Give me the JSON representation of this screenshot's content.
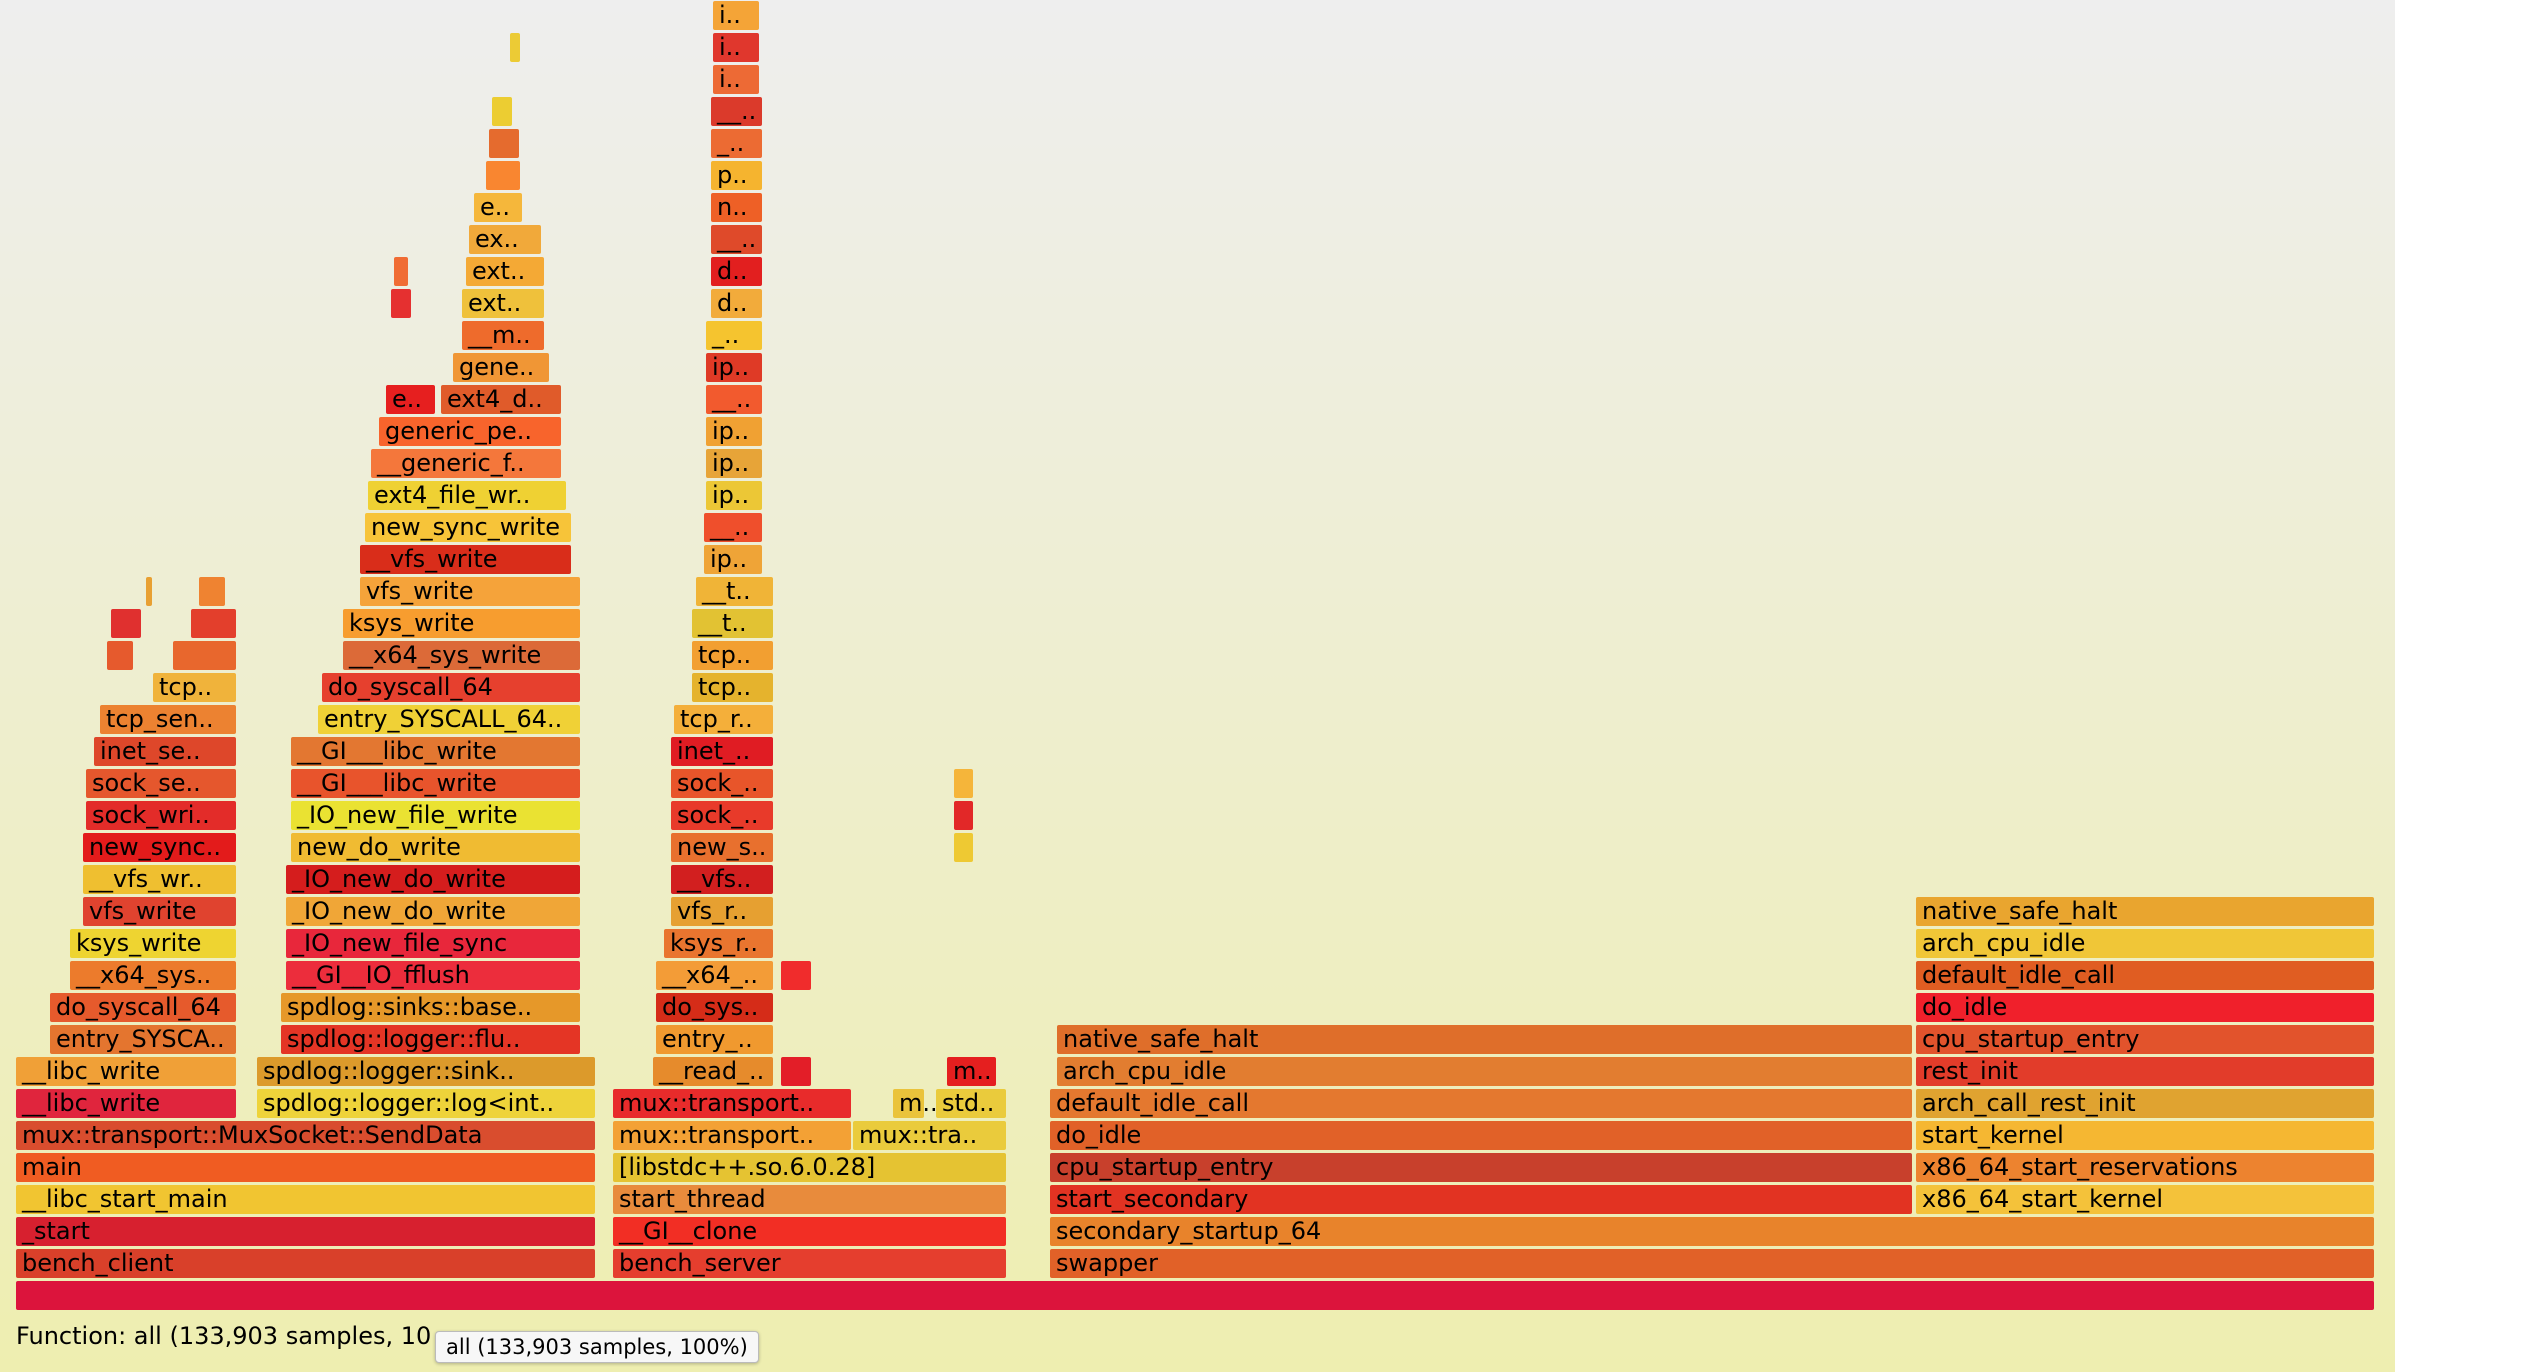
{
  "chart_data": {
    "type": "flamegraph",
    "total_samples": 133903,
    "details_prefix": "Function: ",
    "details": "Function: all (133,903 samples, 10",
    "tooltip": "all (133,903 samples, 100%)",
    "frames": [
      {
        "label": "",
        "x": 0,
        "w": 2360,
        "level": 0,
        "color": "#dc143c"
      },
      {
        "label": "bench_client",
        "x": 0,
        "w": 581,
        "level": 1,
        "color": "#d9402a"
      },
      {
        "label": "_start",
        "x": 0,
        "w": 581,
        "level": 2,
        "color": "#d7202f"
      },
      {
        "label": "__libc_start_main",
        "x": 0,
        "w": 581,
        "level": 3,
        "color": "#f1c531"
      },
      {
        "label": "main",
        "x": 0,
        "w": 581,
        "level": 4,
        "color": "#f05c22"
      },
      {
        "label": "mux::transport::MuxSocket::SendData",
        "x": 0,
        "w": 581,
        "level": 5,
        "color": "#d94d2e"
      },
      {
        "label": "__libc_write",
        "x": 0,
        "w": 222,
        "level": 6,
        "color": "#e0253d"
      },
      {
        "label": "__libc_write",
        "x": 0,
        "w": 222,
        "level": 7,
        "color": "#f0a037"
      },
      {
        "label": "entry_SYSCA..",
        "x": 34,
        "w": 188,
        "level": 8,
        "color": "#e4752f"
      },
      {
        "label": "do_syscall_64",
        "x": 34,
        "w": 188,
        "level": 9,
        "color": "#e65a2c"
      },
      {
        "label": "__x64_sys..",
        "x": 54,
        "w": 168,
        "level": 10,
        "color": "#ec7b2c"
      },
      {
        "label": "ksys_write",
        "x": 54,
        "w": 168,
        "level": 11,
        "color": "#eed431"
      },
      {
        "label": "vfs_write",
        "x": 67,
        "w": 155,
        "level": 12,
        "color": "#e0432f"
      },
      {
        "label": "__vfs_wr..",
        "x": 67,
        "w": 155,
        "level": 13,
        "color": "#efbf30"
      },
      {
        "label": "new_sync..",
        "x": 67,
        "w": 155,
        "level": 14,
        "color": "#e31b1b"
      },
      {
        "label": "sock_wri..",
        "x": 70,
        "w": 152,
        "level": 15,
        "color": "#e32c29"
      },
      {
        "label": "sock_se..",
        "x": 70,
        "w": 152,
        "level": 16,
        "color": "#e5572d"
      },
      {
        "label": "inet_se..",
        "x": 78,
        "w": 144,
        "level": 17,
        "color": "#de472a"
      },
      {
        "label": "tcp_sen..",
        "x": 84,
        "w": 138,
        "level": 18,
        "color": "#ec8231"
      },
      {
        "label": "tcp..",
        "x": 137,
        "w": 85,
        "level": 19,
        "color": "#f0b33b"
      },
      {
        "label": "",
        "x": 91,
        "w": 28,
        "level": 20,
        "color": "#e65a2d"
      },
      {
        "label": "",
        "x": 157,
        "w": 65,
        "level": 20,
        "color": "#e8672d"
      },
      {
        "label": "",
        "x": 95,
        "w": 32,
        "level": 21,
        "color": "#e0302f"
      },
      {
        "label": "",
        "x": 175,
        "w": 47,
        "level": 21,
        "color": "#e33f2c"
      },
      {
        "label": "",
        "x": 130,
        "w": 8,
        "level": 22,
        "color": "#e8a032"
      },
      {
        "label": "",
        "x": 183,
        "w": 28,
        "level": 22,
        "color": "#ef8331"
      },
      {
        "label": "spdlog::logger::log<int..",
        "x": 241,
        "w": 340,
        "level": 6,
        "color": "#eed33a"
      },
      {
        "label": "spdlog::logger::sink..",
        "x": 241,
        "w": 340,
        "level": 7,
        "color": "#dc9a2b"
      },
      {
        "label": "spdlog::logger::flu..",
        "x": 265,
        "w": 301,
        "level": 8,
        "color": "#e43525"
      },
      {
        "label": "spdlog::sinks::base..",
        "x": 265,
        "w": 301,
        "level": 9,
        "color": "#e69829"
      },
      {
        "label": "__GI__IO_fflush",
        "x": 270,
        "w": 296,
        "level": 10,
        "color": "#ec2d3c"
      },
      {
        "label": "_IO_new_file_sync",
        "x": 270,
        "w": 296,
        "level": 11,
        "color": "#e8273b"
      },
      {
        "label": "_IO_new_do_write",
        "x": 270,
        "w": 296,
        "level": 12,
        "color": "#f0a637"
      },
      {
        "label": "_IO_new_do_write",
        "x": 270,
        "w": 296,
        "level": 13,
        "color": "#d51d1d"
      },
      {
        "label": "new_do_write",
        "x": 275,
        "w": 291,
        "level": 14,
        "color": "#f0bb32"
      },
      {
        "label": "_IO_new_file_write",
        "x": 275,
        "w": 291,
        "level": 15,
        "color": "#eae232"
      },
      {
        "label": "__GI___libc_write",
        "x": 275,
        "w": 291,
        "level": 16,
        "color": "#e8542c"
      },
      {
        "label": "__GI___libc_write",
        "x": 275,
        "w": 291,
        "level": 17,
        "color": "#e37731"
      },
      {
        "label": "entry_SYSCALL_64..",
        "x": 302,
        "w": 264,
        "level": 18,
        "color": "#f0d136"
      },
      {
        "label": "do_syscall_64",
        "x": 306,
        "w": 260,
        "level": 19,
        "color": "#e6402e"
      },
      {
        "label": "__x64_sys_write",
        "x": 327,
        "w": 239,
        "level": 20,
        "color": "#dc6a38"
      },
      {
        "label": "ksys_write",
        "x": 327,
        "w": 239,
        "level": 21,
        "color": "#f79d2f"
      },
      {
        "label": "vfs_write",
        "x": 344,
        "w": 222,
        "level": 22,
        "color": "#f5a33a"
      },
      {
        "label": "__vfs_write",
        "x": 344,
        "w": 213,
        "level": 23,
        "color": "#d92d1a"
      },
      {
        "label": "new_sync_write",
        "x": 349,
        "w": 208,
        "level": 24,
        "color": "#f7c439"
      },
      {
        "label": "ext4_file_wr..",
        "x": 352,
        "w": 200,
        "level": 25,
        "color": "#efd133"
      },
      {
        "label": "__generic_f..",
        "x": 355,
        "w": 192,
        "level": 26,
        "color": "#f4773b"
      },
      {
        "label": "generic_pe..",
        "x": 363,
        "w": 184,
        "level": 27,
        "color": "#f8642c"
      },
      {
        "label": "e..",
        "x": 370,
        "w": 51,
        "level": 28,
        "color": "#e61f1f"
      },
      {
        "label": "ext4_d..",
        "x": 425,
        "w": 122,
        "level": 28,
        "color": "#e05b2a"
      },
      {
        "label": "gene..",
        "x": 437,
        "w": 98,
        "level": 29,
        "color": "#f09635"
      },
      {
        "label": "__m..",
        "x": 446,
        "w": 84,
        "level": 30,
        "color": "#ee6b2c"
      },
      {
        "label": "ext..",
        "x": 446,
        "w": 84,
        "level": 31,
        "color": "#efc13b"
      },
      {
        "label": "ext..",
        "x": 450,
        "w": 80,
        "level": 32,
        "color": "#f4a935"
      },
      {
        "label": "ex..",
        "x": 453,
        "w": 74,
        "level": 33,
        "color": "#f1a93a"
      },
      {
        "label": "e..",
        "x": 458,
        "w": 50,
        "level": 34,
        "color": "#f5b73b"
      },
      {
        "label": "",
        "x": 470,
        "w": 36,
        "level": 35,
        "color": "#f98630"
      },
      {
        "label": "",
        "x": 473,
        "w": 32,
        "level": 36,
        "color": "#e56b2e"
      },
      {
        "label": "",
        "x": 476,
        "w": 22,
        "level": 37,
        "color": "#eccd32"
      },
      {
        "label": "",
        "x": 494,
        "w": 12,
        "level": 39,
        "color": "#eccb35"
      },
      {
        "label": "",
        "x": 375,
        "w": 22,
        "level": 31,
        "color": "#e53030"
      },
      {
        "label": "",
        "x": 378,
        "w": 16,
        "level": 32,
        "color": "#f06c34"
      },
      {
        "label": "bench_server",
        "x": 597,
        "w": 395,
        "level": 1,
        "color": "#e53e2e"
      },
      {
        "label": "__GI__clone",
        "x": 597,
        "w": 395,
        "level": 2,
        "color": "#f22e24"
      },
      {
        "label": "start_thread",
        "x": 597,
        "w": 395,
        "level": 3,
        "color": "#e88b3c"
      },
      {
        "label": "[libstdc++.so.6.0.28]",
        "x": 597,
        "w": 395,
        "level": 4,
        "color": "#e5c332"
      },
      {
        "label": "mux::transport..",
        "x": 597,
        "w": 240,
        "level": 5,
        "color": "#f3a135"
      },
      {
        "label": "mux::tra..",
        "x": 837,
        "w": 155,
        "level": 5,
        "color": "#eacb3c"
      },
      {
        "label": "mux::transport..",
        "x": 597,
        "w": 240,
        "level": 6,
        "color": "#e82b2b"
      },
      {
        "label": "__read_..",
        "x": 637,
        "w": 122,
        "level": 7,
        "color": "#e68b2c"
      },
      {
        "label": "entry_..",
        "x": 640,
        "w": 119,
        "level": 8,
        "color": "#f0992f"
      },
      {
        "label": "do_sys..",
        "x": 640,
        "w": 119,
        "level": 9,
        "color": "#d52c18"
      },
      {
        "label": "__x64_..",
        "x": 640,
        "w": 119,
        "level": 10,
        "color": "#f39c37"
      },
      {
        "label": "ksys_r..",
        "x": 648,
        "w": 111,
        "level": 11,
        "color": "#e9752f"
      },
      {
        "label": "vfs_r..",
        "x": 655,
        "w": 104,
        "level": 12,
        "color": "#e6a031"
      },
      {
        "label": "__vfs..",
        "x": 655,
        "w": 104,
        "level": 13,
        "color": "#d21f1f"
      },
      {
        "label": "new_s..",
        "x": 655,
        "w": 104,
        "level": 14,
        "color": "#e8702e"
      },
      {
        "label": "sock_..",
        "x": 655,
        "w": 104,
        "level": 15,
        "color": "#e83a2a"
      },
      {
        "label": "sock_..",
        "x": 655,
        "w": 104,
        "level": 16,
        "color": "#e8552a"
      },
      {
        "label": "inet_..",
        "x": 655,
        "w": 104,
        "level": 17,
        "color": "#e01c23"
      },
      {
        "label": "tcp_r..",
        "x": 658,
        "w": 101,
        "level": 18,
        "color": "#f4af3a"
      },
      {
        "label": "tcp..",
        "x": 676,
        "w": 83,
        "level": 19,
        "color": "#e5b32d"
      },
      {
        "label": "tcp..",
        "x": 676,
        "w": 83,
        "level": 20,
        "color": "#f29f31"
      },
      {
        "label": "__t..",
        "x": 676,
        "w": 83,
        "level": 21,
        "color": "#e2c233"
      },
      {
        "label": "__t..",
        "x": 680,
        "w": 79,
        "level": 22,
        "color": "#f0b437"
      },
      {
        "label": "ip..",
        "x": 688,
        "w": 60,
        "level": 23,
        "color": "#efa437"
      },
      {
        "label": "__..",
        "x": 688,
        "w": 60,
        "level": 24,
        "color": "#ef4f2c"
      },
      {
        "label": "ip..",
        "x": 690,
        "w": 58,
        "level": 25,
        "color": "#ecc736"
      },
      {
        "label": "ip..",
        "x": 690,
        "w": 58,
        "level": 26,
        "color": "#e7a438"
      },
      {
        "label": "ip..",
        "x": 690,
        "w": 58,
        "level": 27,
        "color": "#f0a133"
      },
      {
        "label": "__..",
        "x": 690,
        "w": 58,
        "level": 28,
        "color": "#f25a2e"
      },
      {
        "label": "ip..",
        "x": 690,
        "w": 58,
        "level": 29,
        "color": "#df3a26"
      },
      {
        "label": "_..",
        "x": 690,
        "w": 58,
        "level": 30,
        "color": "#f5c42f"
      },
      {
        "label": "d..",
        "x": 695,
        "w": 53,
        "level": 31,
        "color": "#f2ab3b"
      },
      {
        "label": "d..",
        "x": 695,
        "w": 53,
        "level": 32,
        "color": "#e21f1f"
      },
      {
        "label": "__..",
        "x": 695,
        "w": 53,
        "level": 33,
        "color": "#df4a2a"
      },
      {
        "label": "n..",
        "x": 695,
        "w": 53,
        "level": 34,
        "color": "#ee6026"
      },
      {
        "label": "p..",
        "x": 695,
        "w": 53,
        "level": 35,
        "color": "#f5b42f"
      },
      {
        "label": "_..",
        "x": 695,
        "w": 53,
        "level": 36,
        "color": "#ec6b33"
      },
      {
        "label": "__..",
        "x": 695,
        "w": 53,
        "level": 37,
        "color": "#db3a2b"
      },
      {
        "label": "i..",
        "x": 697,
        "w": 48,
        "level": 38,
        "color": "#ed6a35"
      },
      {
        "label": "i..",
        "x": 697,
        "w": 48,
        "level": 39,
        "color": "#e0372d"
      },
      {
        "label": "i..",
        "x": 697,
        "w": 48,
        "level": 40,
        "color": "#f4a437"
      },
      {
        "label": "m..",
        "x": 877,
        "w": 33,
        "level": 6,
        "color": "#eac33b"
      },
      {
        "label": "std..",
        "x": 920,
        "w": 72,
        "level": 6,
        "color": "#eacb3c"
      },
      {
        "label": "m..",
        "x": 931,
        "w": 51,
        "level": 7,
        "color": "#e51f1f"
      },
      {
        "label": "",
        "x": 765,
        "w": 32,
        "level": 7,
        "color": "#e31e28"
      },
      {
        "label": "",
        "x": 765,
        "w": 32,
        "level": 10,
        "color": "#f02c2c"
      },
      {
        "label": "",
        "x": 938,
        "w": 21,
        "level": 16,
        "color": "#f5b53a"
      },
      {
        "label": "",
        "x": 938,
        "w": 21,
        "level": 15,
        "color": "#e22828"
      },
      {
        "label": "",
        "x": 938,
        "w": 21,
        "level": 14,
        "color": "#eec933"
      },
      {
        "label": "swapper",
        "x": 1034,
        "w": 1326,
        "level": 1,
        "color": "#e16128"
      },
      {
        "label": "secondary_startup_64",
        "x": 1034,
        "w": 1326,
        "level": 2,
        "color": "#e8832b"
      },
      {
        "label": "start_secondary",
        "x": 1034,
        "w": 864,
        "level": 3,
        "color": "#e23322"
      },
      {
        "label": "cpu_startup_entry",
        "x": 1034,
        "w": 864,
        "level": 4,
        "color": "#c8402c"
      },
      {
        "label": "do_idle",
        "x": 1034,
        "w": 864,
        "level": 5,
        "color": "#e16128"
      },
      {
        "label": "default_idle_call",
        "x": 1034,
        "w": 864,
        "level": 6,
        "color": "#e4782f"
      },
      {
        "label": "arch_cpu_idle",
        "x": 1041,
        "w": 857,
        "level": 7,
        "color": "#e27d30"
      },
      {
        "label": "native_safe_halt",
        "x": 1041,
        "w": 857,
        "level": 8,
        "color": "#df6e2a"
      },
      {
        "label": "x86_64_start_kernel",
        "x": 1900,
        "w": 460,
        "level": 3,
        "color": "#f4c23a"
      },
      {
        "label": "x86_64_start_reservations",
        "x": 1900,
        "w": 460,
        "level": 4,
        "color": "#ed832f"
      },
      {
        "label": "start_kernel",
        "x": 1900,
        "w": 460,
        "level": 5,
        "color": "#f5b732"
      },
      {
        "label": "arch_call_rest_init",
        "x": 1900,
        "w": 460,
        "level": 6,
        "color": "#e0a330"
      },
      {
        "label": "rest_init",
        "x": 1900,
        "w": 460,
        "level": 7,
        "color": "#e23c2a"
      },
      {
        "label": "cpu_startup_entry",
        "x": 1900,
        "w": 460,
        "level": 8,
        "color": "#e2532c"
      },
      {
        "label": "do_idle",
        "x": 1900,
        "w": 460,
        "level": 9,
        "color": "#f0202b"
      },
      {
        "label": "default_idle_call",
        "x": 1900,
        "w": 460,
        "level": 10,
        "color": "#e05d22"
      },
      {
        "label": "arch_cpu_idle",
        "x": 1900,
        "w": 460,
        "level": 11,
        "color": "#f0c637"
      },
      {
        "label": "native_safe_halt",
        "x": 1900,
        "w": 460,
        "level": 12,
        "color": "#e9a52f"
      }
    ]
  }
}
